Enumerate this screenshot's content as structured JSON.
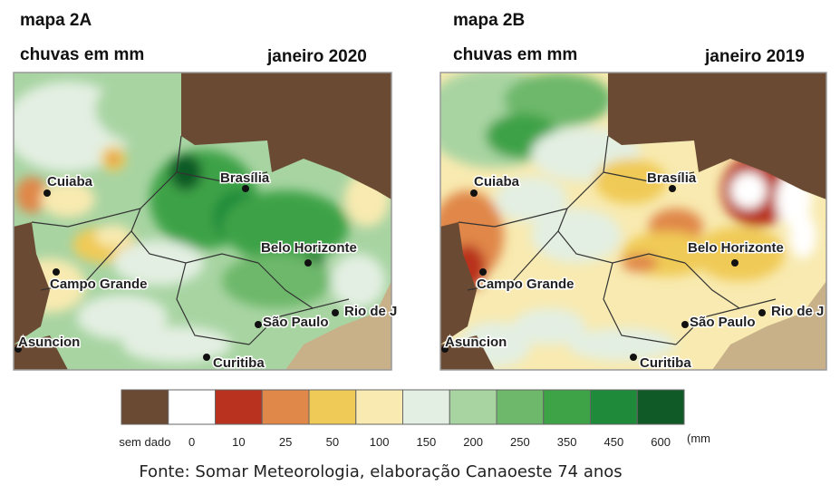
{
  "maps": [
    {
      "title": "mapa 2A",
      "subtitle": "chuvas em mm",
      "date": "janeiro 2020",
      "cities": [
        "Brasília",
        "Cuiaba",
        "Belo Horizonte",
        "Campo Grande",
        "São Paulo",
        "Rio de J",
        "Asuncion",
        "Curitiba"
      ]
    },
    {
      "title": "mapa 2B",
      "subtitle": "chuvas em mm",
      "date": "janeiro 2019",
      "cities": [
        "Brasília",
        "Cuiaba",
        "Belo Horizonte",
        "Campo Grande",
        "São Paulo",
        "Rio de J",
        "Asuncion",
        "Curitiba"
      ]
    }
  ],
  "legend": {
    "items": [
      {
        "label": "sem dado",
        "color": "#6b4a33"
      },
      {
        "label": "0",
        "color": "#ffffff"
      },
      {
        "label": "10",
        "color": "#b8321f"
      },
      {
        "label": "25",
        "color": "#e0874a"
      },
      {
        "label": "50",
        "color": "#f0ca57"
      },
      {
        "label": "100",
        "color": "#f8eab0"
      },
      {
        "label": "150",
        "color": "#e3efe2"
      },
      {
        "label": "200",
        "color": "#a8d4a2"
      },
      {
        "label": "250",
        "color": "#6db86a"
      },
      {
        "label": "350",
        "color": "#3ea246"
      },
      {
        "label": "450",
        "color": "#1f8a3a"
      },
      {
        "label": "600",
        "color": "#0f5a27"
      }
    ],
    "unit": "(mm"
  },
  "source": "Fonte: Somar Meteorologia, elaboração Canaoeste 74 anos"
}
